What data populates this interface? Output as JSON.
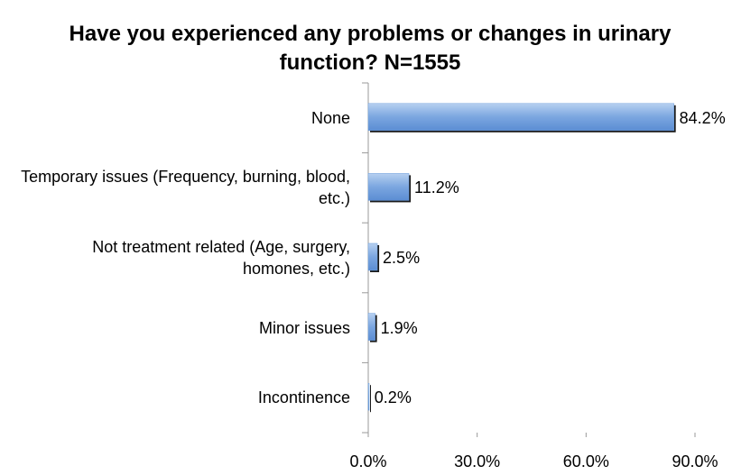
{
  "chart_data": {
    "type": "barh",
    "title": "Have you experienced any problems or changes in urinary function? N=1555",
    "categories": [
      "None",
      "Temporary issues (Frequency, burning, blood, etc.)",
      "Not treatment related (Age, surgery, homones, etc.)",
      "Minor issues",
      "Incontinence"
    ],
    "values": [
      84.2,
      11.2,
      2.5,
      1.9,
      0.2
    ],
    "value_labels": [
      "84.2%",
      "11.2%",
      "2.5%",
      "1.9%",
      "0.2%"
    ],
    "color": "#6f9fdc",
    "xlim": [
      0,
      90
    ],
    "xticks": [
      {
        "value": 0,
        "label": "0.0%"
      },
      {
        "value": 30,
        "label": "30.0%"
      },
      {
        "value": 60,
        "label": "60.0%"
      },
      {
        "value": 90,
        "label": "90.0%"
      }
    ],
    "grid": false
  }
}
